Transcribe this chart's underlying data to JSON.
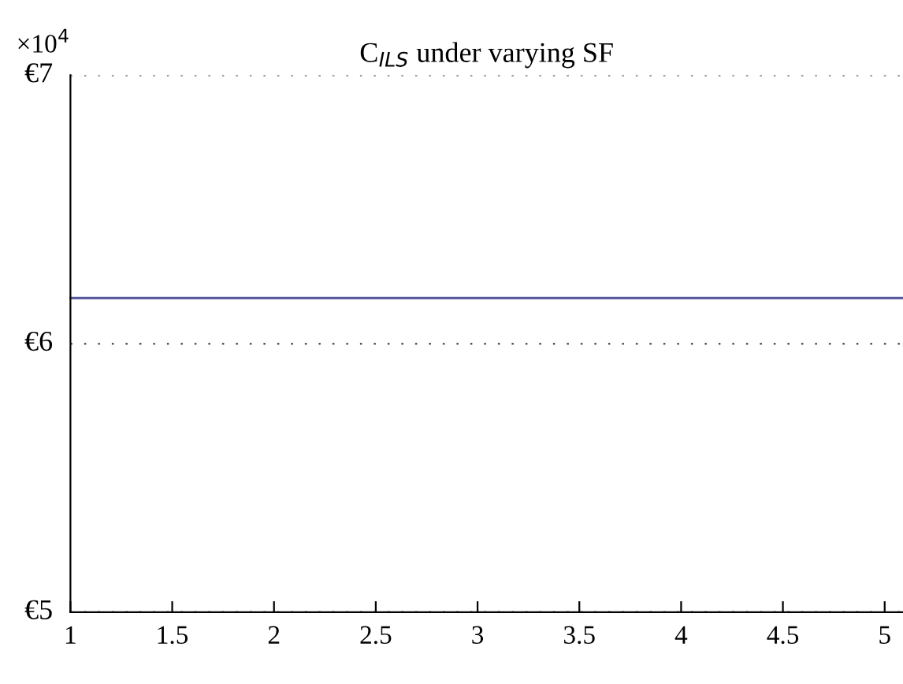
{
  "chart_data": {
    "type": "line",
    "title": "C$_{ILS}$ under varying SF",
    "annotations": [
      "×10$^{4}$"
    ],
    "series": [
      {
        "color": "#55559a",
        "x": [
          1,
          5.09
        ],
        "values": [
          6.17,
          6.17
        ]
      }
    ],
    "xlim": [
      1,
      5.09
    ],
    "xticks": [
      1,
      1.5,
      2,
      2.5,
      3,
      3.5,
      4,
      4.5,
      5
    ],
    "ylim": [
      5,
      7
    ],
    "yticks": [
      {
        "value": 5,
        "label": "€5"
      },
      {
        "value": 6,
        "label": "€6"
      },
      {
        "value": 7,
        "label": "€7"
      }
    ],
    "grid": "y",
    "marker": "none",
    "line_style": "solid"
  }
}
